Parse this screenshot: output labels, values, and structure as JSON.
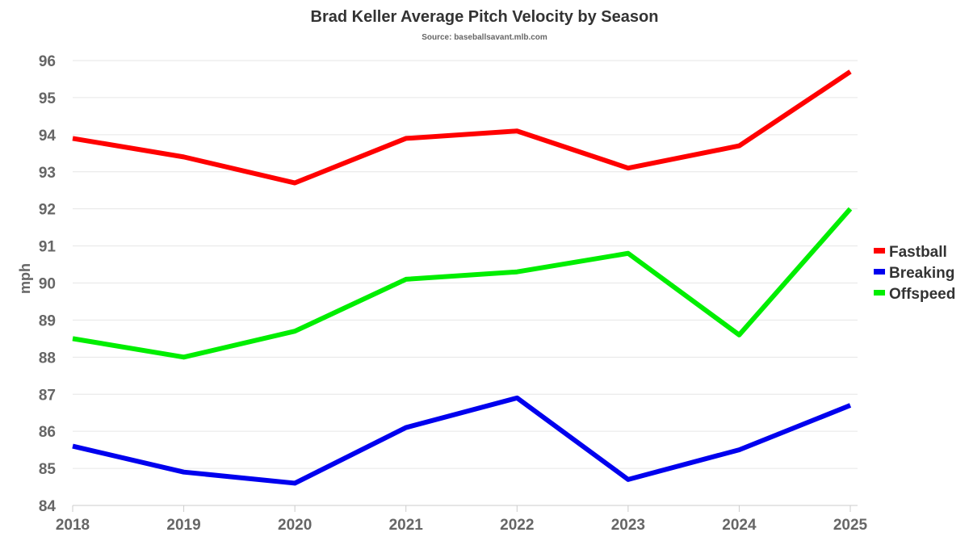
{
  "chart_data": {
    "type": "line",
    "title": "Brad Keller Average Pitch Velocity by Season",
    "subtitle": "Source: baseballsavant.mlb.com",
    "xlabel": "",
    "ylabel": "mph",
    "ylim": [
      84,
      96
    ],
    "yticks": [
      84,
      85,
      86,
      87,
      88,
      89,
      90,
      91,
      92,
      93,
      94,
      95,
      96
    ],
    "x": [
      "2018",
      "2019",
      "2020",
      "2021",
      "2022",
      "2023",
      "2024",
      "2025"
    ],
    "grid": true,
    "legend_placement": "right",
    "series": [
      {
        "name": "Fastball",
        "color": "#ff0000",
        "values": [
          93.9,
          93.4,
          92.7,
          93.9,
          94.1,
          93.1,
          93.7,
          95.7
        ]
      },
      {
        "name": "Breaking",
        "color": "#0000ee",
        "values": [
          85.6,
          84.9,
          84.6,
          86.1,
          86.9,
          84.7,
          85.5,
          86.7
        ]
      },
      {
        "name": "Offspeed",
        "color": "#00ee00",
        "values": [
          88.5,
          88.0,
          88.7,
          90.1,
          90.3,
          90.8,
          88.6,
          92.0
        ]
      }
    ]
  }
}
